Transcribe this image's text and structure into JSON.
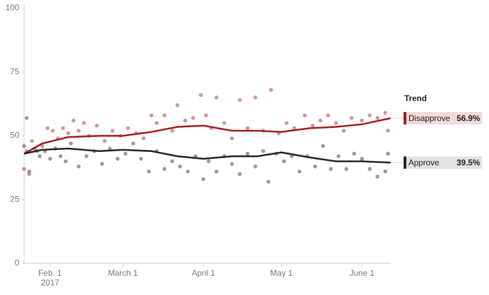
{
  "chart_data": {
    "type": "line",
    "legend_title": "Trend",
    "year_label": "2017",
    "xlim": [
      "2017-01-22",
      "2017-06-12"
    ],
    "xticks": [
      {
        "value": "2017-02-01",
        "label": "Feb. 1"
      },
      {
        "value": "2017-03-01",
        "label": "March 1"
      },
      {
        "value": "2017-04-01",
        "label": "April 1"
      },
      {
        "value": "2017-05-01",
        "label": "May 1"
      },
      {
        "value": "2017-06-01",
        "label": "June 1"
      }
    ],
    "ylim": [
      0,
      100
    ],
    "yticks": [
      0,
      25,
      50,
      75,
      100
    ],
    "grid": false,
    "series": [
      {
        "name": "Disapprove",
        "color": "#9e1b1e",
        "point_color": "#c2474b",
        "label_bg": "#f4d9d9",
        "latest": 56.9,
        "latest_label": "56.9%",
        "x": [
          "2017-01-22",
          "2017-01-29",
          "2017-02-08",
          "2017-02-20",
          "2017-03-01",
          "2017-03-12",
          "2017-03-22",
          "2017-04-01",
          "2017-04-12",
          "2017-04-22",
          "2017-05-01",
          "2017-05-12",
          "2017-05-22",
          "2017-06-01",
          "2017-06-12"
        ],
        "values": [
          43,
          47,
          49.5,
          50,
          50,
          51.5,
          53.5,
          54,
          52,
          52,
          51.5,
          53,
          53.5,
          54.5,
          56.9
        ],
        "points": {
          "x": [
            "2017-01-22",
            "2017-01-23",
            "2017-01-24",
            "2017-01-25",
            "2017-01-27",
            "2017-01-29",
            "2017-01-31",
            "2017-02-02",
            "2017-02-04",
            "2017-02-06",
            "2017-02-08",
            "2017-02-10",
            "2017-02-12",
            "2017-02-14",
            "2017-02-16",
            "2017-02-19",
            "2017-02-22",
            "2017-02-25",
            "2017-02-28",
            "2017-03-03",
            "2017-03-06",
            "2017-03-09",
            "2017-03-12",
            "2017-03-14",
            "2017-03-17",
            "2017-03-20",
            "2017-03-22",
            "2017-03-25",
            "2017-03-28",
            "2017-03-31",
            "2017-04-02",
            "2017-04-04",
            "2017-04-06",
            "2017-04-09",
            "2017-04-12",
            "2017-04-15",
            "2017-04-18",
            "2017-04-21",
            "2017-04-24",
            "2017-04-27",
            "2017-04-30",
            "2017-05-03",
            "2017-05-06",
            "2017-05-10",
            "2017-05-13",
            "2017-05-16",
            "2017-05-19",
            "2017-05-22",
            "2017-05-25",
            "2017-05-28",
            "2017-06-01",
            "2017-06-04",
            "2017-06-07",
            "2017-06-10",
            "2017-06-11"
          ],
          "values": [
            37,
            44,
            35,
            48,
            44,
            46,
            53,
            52,
            49,
            53,
            51,
            56,
            52,
            55,
            50,
            54,
            48,
            52,
            50,
            53,
            51,
            49,
            58,
            55,
            58,
            52,
            62,
            56,
            57,
            66,
            58,
            53,
            65,
            55,
            49,
            64,
            53,
            65,
            52,
            68,
            51,
            55,
            53,
            58,
            54,
            56,
            58,
            55,
            52,
            57,
            56,
            58,
            57,
            59,
            52
          ]
        }
      },
      {
        "name": "Approve",
        "color": "#222222",
        "point_color": "#555555",
        "label_bg": "#e2e2e2",
        "latest": 39.5,
        "latest_label": "39.5%",
        "x": [
          "2017-01-22",
          "2017-01-29",
          "2017-02-08",
          "2017-02-20",
          "2017-03-01",
          "2017-03-12",
          "2017-03-22",
          "2017-04-01",
          "2017-04-12",
          "2017-04-22",
          "2017-05-01",
          "2017-05-12",
          "2017-05-22",
          "2017-06-01",
          "2017-06-12"
        ],
        "values": [
          43,
          44.5,
          45,
          44,
          44.5,
          44,
          42,
          41,
          42,
          42,
          43.5,
          41.5,
          40,
          40,
          39.5
        ],
        "points": {
          "x": [
            "2017-01-22",
            "2017-01-23",
            "2017-01-24",
            "2017-01-26",
            "2017-01-28",
            "2017-01-30",
            "2017-02-01",
            "2017-02-03",
            "2017-02-05",
            "2017-02-07",
            "2017-02-09",
            "2017-02-12",
            "2017-02-15",
            "2017-02-18",
            "2017-02-21",
            "2017-02-24",
            "2017-02-27",
            "2017-03-02",
            "2017-03-05",
            "2017-03-08",
            "2017-03-11",
            "2017-03-14",
            "2017-03-17",
            "2017-03-20",
            "2017-03-23",
            "2017-03-26",
            "2017-03-29",
            "2017-04-01",
            "2017-04-03",
            "2017-04-06",
            "2017-04-09",
            "2017-04-12",
            "2017-04-15",
            "2017-04-18",
            "2017-04-21",
            "2017-04-24",
            "2017-04-26",
            "2017-04-29",
            "2017-05-02",
            "2017-05-05",
            "2017-05-08",
            "2017-05-11",
            "2017-05-14",
            "2017-05-17",
            "2017-05-20",
            "2017-05-23",
            "2017-05-26",
            "2017-05-29",
            "2017-06-01",
            "2017-06-04",
            "2017-06-07",
            "2017-06-10",
            "2017-06-11"
          ],
          "values": [
            46,
            57,
            36,
            45,
            42,
            44,
            41,
            45,
            42,
            40,
            47,
            38,
            42,
            44,
            39,
            45,
            41,
            43,
            47,
            41,
            36,
            44,
            37,
            40,
            38,
            36,
            42,
            33,
            40,
            36,
            42,
            39,
            35,
            43,
            38,
            44,
            32,
            43,
            40,
            42,
            36,
            42,
            38,
            46,
            37,
            42,
            37,
            43,
            41,
            37,
            34,
            36,
            43
          ]
        }
      }
    ]
  }
}
